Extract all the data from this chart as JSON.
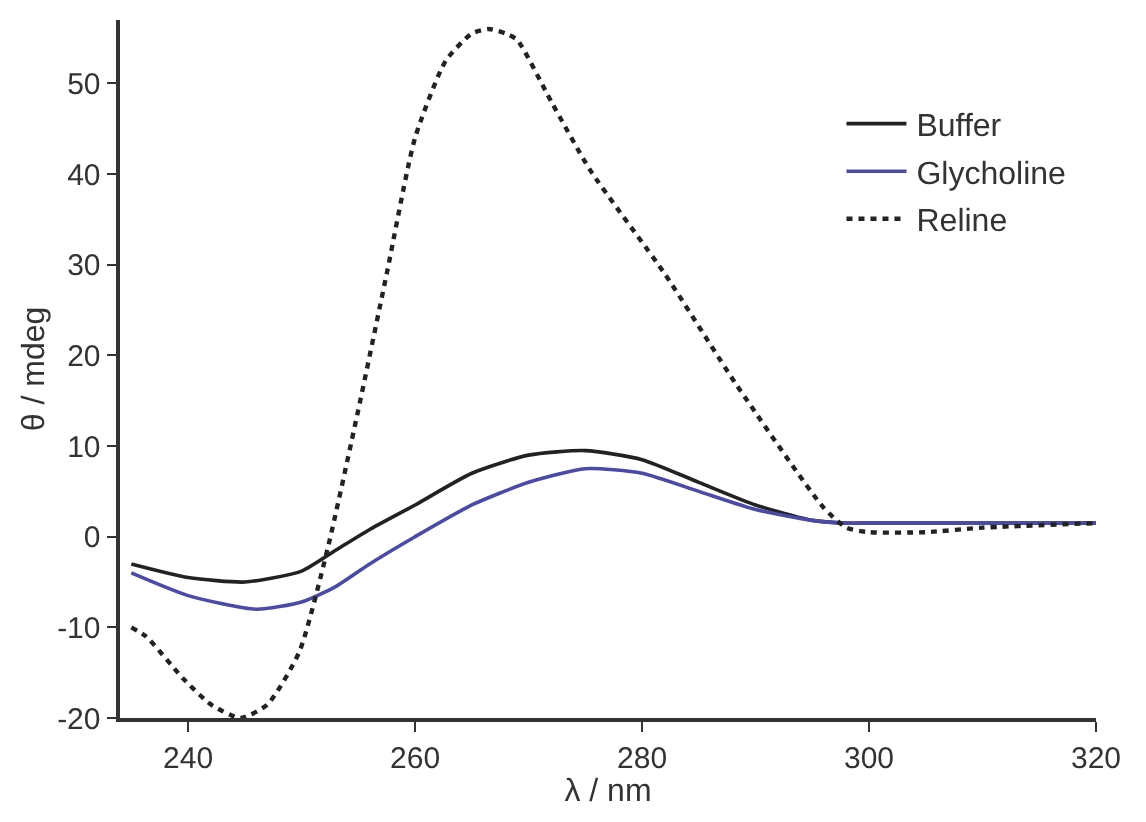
{
  "chart_data": {
    "type": "line",
    "xlabel": "λ / nm",
    "ylabel": "θ / mdeg",
    "xlim": [
      234,
      320
    ],
    "xticks": [
      240,
      260,
      280,
      300,
      320
    ],
    "ylim": [
      -20,
      57
    ],
    "yticks": [
      -20,
      -10,
      0,
      10,
      20,
      30,
      40,
      50
    ],
    "grid": false,
    "legend": "top right",
    "series": [
      {
        "name": "Buffer",
        "color": "#222222",
        "line_style": "solid",
        "x": [
          235,
          240,
          245,
          250,
          253,
          256,
          260,
          265,
          270,
          275,
          280,
          285,
          290,
          295,
          298,
          300,
          310,
          320
        ],
        "values": [
          -3,
          -4.5,
          -5,
          -3.8,
          -1.5,
          0.8,
          3.5,
          7,
          9,
          9.5,
          8.5,
          6,
          3.5,
          1.8,
          1.5,
          1.5,
          1.5,
          1.5
        ]
      },
      {
        "name": "Glycholine",
        "color": "#4a4aa8",
        "line_style": "solid",
        "x": [
          235,
          240,
          246,
          250,
          253,
          256,
          260,
          265,
          270,
          275,
          280,
          285,
          290,
          295,
          298,
          300,
          310,
          320
        ],
        "values": [
          -4,
          -6.5,
          -8,
          -7.2,
          -5.5,
          -3,
          0,
          3.5,
          6,
          7.5,
          7,
          5,
          3,
          1.8,
          1.5,
          1.5,
          1.5,
          1.5
        ]
      },
      {
        "name": "Reline",
        "color": "#222222",
        "line_style": "dotted",
        "x": [
          235,
          236.3,
          239.6,
          242,
          244.6,
          247,
          249.8,
          252.3,
          255,
          257.5,
          260,
          262.7,
          265,
          266.5,
          268,
          269,
          272,
          275.4,
          282,
          288.3,
          296,
          298,
          300,
          305,
          310,
          320
        ],
        "values": [
          -10,
          -11,
          -15.7,
          -18.5,
          -20,
          -18.5,
          -12.7,
          -1.3,
          14,
          29,
          44,
          52.5,
          55.5,
          56,
          55.5,
          54.8,
          48,
          40.5,
          29,
          16.8,
          3.2,
          1,
          0.5,
          0.5,
          1,
          1.5
        ]
      }
    ]
  }
}
